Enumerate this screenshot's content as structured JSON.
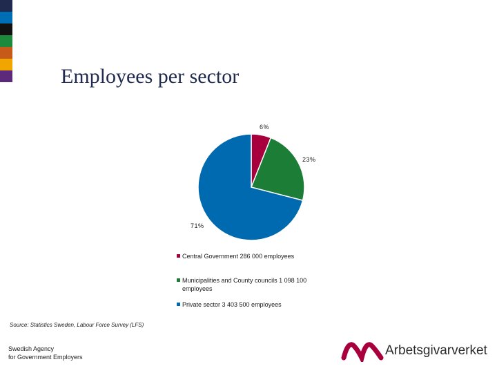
{
  "slide": {
    "title": "Employees per sector",
    "strip_colors": [
      "#1f2a4e",
      "#006eb4",
      "#111111",
      "#1b8a3c",
      "#c85a19",
      "#f0a500",
      "#5b2a7b"
    ]
  },
  "chart_data": {
    "type": "pie",
    "title": "",
    "slices": [
      {
        "name": "Central Government 286 000 employees",
        "value": 6,
        "label": "6%",
        "color": "#a8003c"
      },
      {
        "name": "Municipalities and County councils 1 098 100 employees",
        "value": 23,
        "label": "23%",
        "color": "#1b7d36"
      },
      {
        "name": "Private sector 3 403 500 employees",
        "value": 71,
        "label": "71%",
        "color": "#006ab0"
      }
    ],
    "legend_position": "bottom-right"
  },
  "footer": {
    "source": "Source: Statistics Sweden, Labour Force Survey (LFS)",
    "org_line1": "Swedish Agency",
    "org_line2": "for Government Employers",
    "logo_text": "Arbetsgivarverket",
    "logo_color": "#a8003c"
  }
}
